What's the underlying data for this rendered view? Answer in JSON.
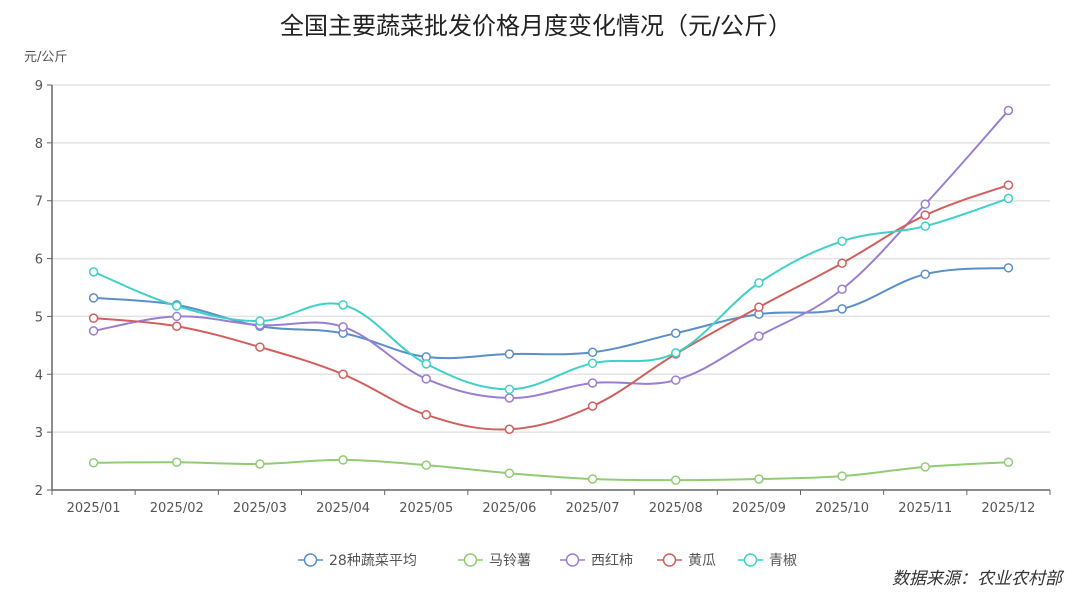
{
  "chart_data": {
    "type": "line",
    "title": "全国主要蔬菜批发价格月度变化情况（元/公斤）",
    "ylabel": "元/公斤",
    "xlabel": "",
    "ylim": [
      2,
      9
    ],
    "yticks": [
      2,
      3,
      4,
      5,
      6,
      7,
      8,
      9
    ],
    "grid": true,
    "smooth": true,
    "legend_position": "bottom",
    "categories": [
      "2025/01",
      "2025/02",
      "2025/03",
      "2025/04",
      "2025/05",
      "2025/06",
      "2025/07",
      "2025/08",
      "2025/09",
      "2025/10",
      "2025/11",
      "2025/12"
    ],
    "series": [
      {
        "name": "28种蔬菜平均",
        "color": "#5b8fc7",
        "values": [
          5.32,
          5.2,
          4.83,
          4.71,
          4.3,
          4.35,
          4.38,
          4.71,
          5.04,
          5.13,
          5.73,
          5.84
        ]
      },
      {
        "name": "马铃薯",
        "color": "#91cc75",
        "values": [
          2.47,
          2.48,
          2.45,
          2.52,
          2.43,
          2.29,
          2.19,
          2.17,
          2.19,
          2.24,
          2.4,
          2.48
        ]
      },
      {
        "name": "西红柿",
        "color": "#9a7fd1",
        "values": [
          4.75,
          5.0,
          4.85,
          4.82,
          3.92,
          3.59,
          3.85,
          3.9,
          4.66,
          5.47,
          6.94,
          8.56
        ]
      },
      {
        "name": "黄瓜",
        "color": "#d0605e",
        "values": [
          4.97,
          4.83,
          4.47,
          4.0,
          3.3,
          3.05,
          3.45,
          4.35,
          5.16,
          5.92,
          6.75,
          7.27
        ]
      },
      {
        "name": "青椒",
        "color": "#3fd1c8",
        "values": [
          5.77,
          5.18,
          4.92,
          5.2,
          4.18,
          3.74,
          4.19,
          4.37,
          5.58,
          6.3,
          6.56,
          7.04
        ]
      }
    ],
    "source": "数据来源：农业农村部"
  }
}
